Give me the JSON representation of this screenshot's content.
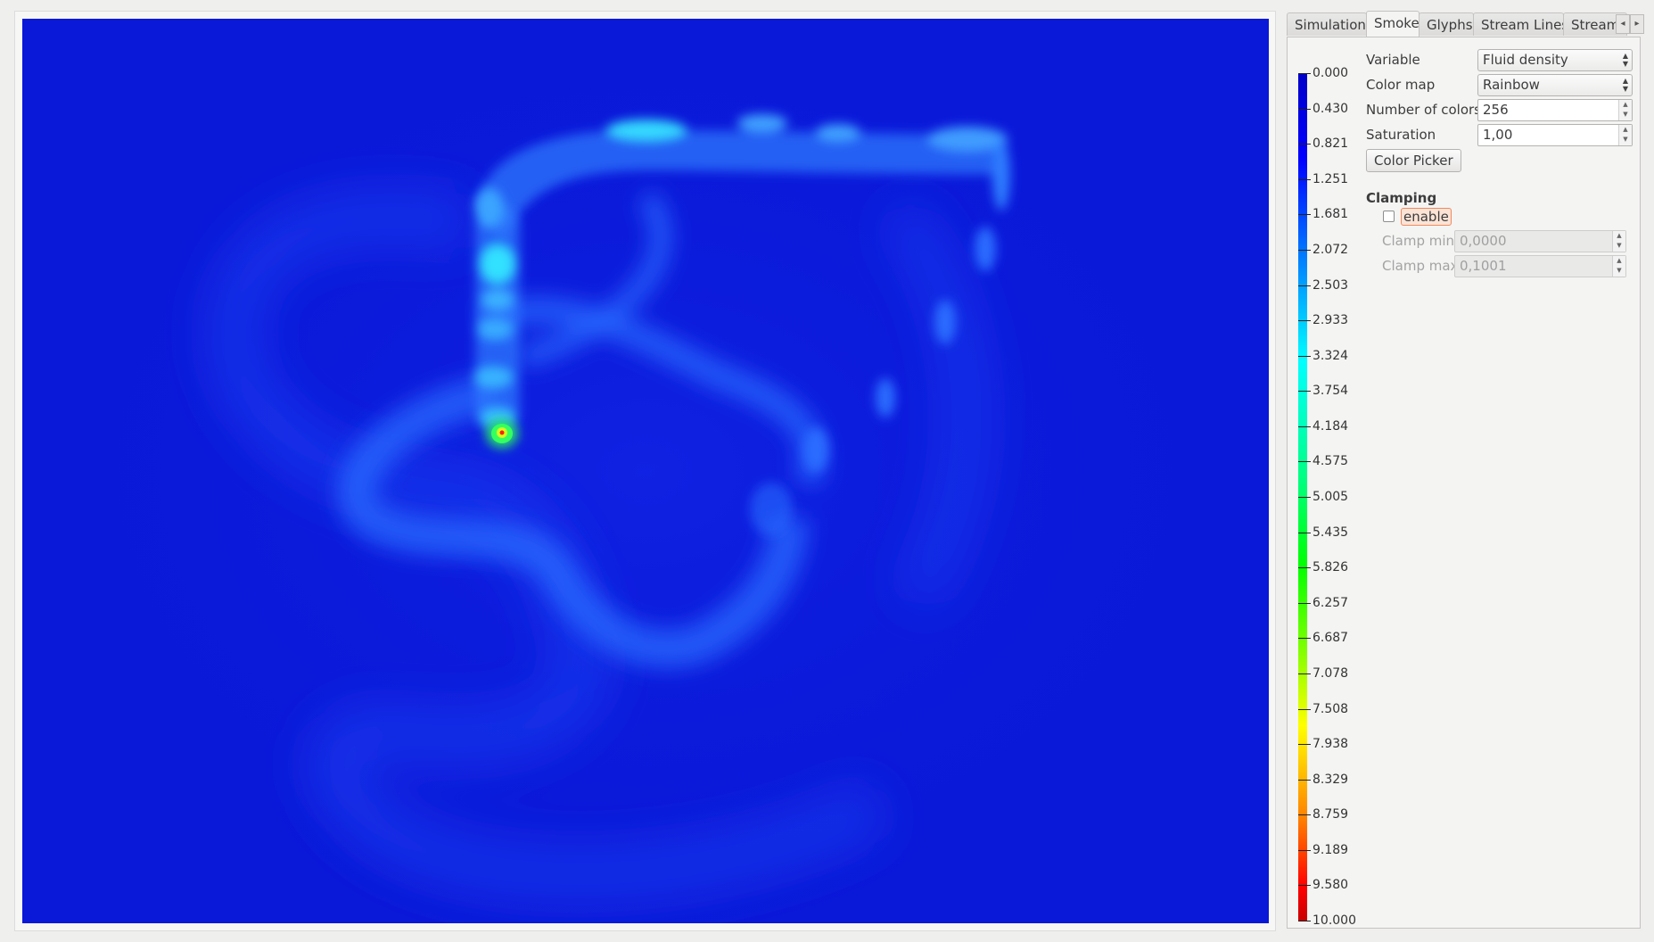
{
  "tabs": [
    {
      "label": "Simulation",
      "active": false
    },
    {
      "label": "Smoke",
      "active": true
    },
    {
      "label": "Glyphs",
      "active": false
    },
    {
      "label": "Stream Lines",
      "active": false
    },
    {
      "label": "Stream",
      "active": false
    }
  ],
  "legend": {
    "ticks": [
      "0.000",
      "0.430",
      "0.821",
      "1.251",
      "1.681",
      "2.072",
      "2.503",
      "2.933",
      "3.324",
      "3.754",
      "4.184",
      "4.575",
      "5.005",
      "5.435",
      "5.826",
      "6.257",
      "6.687",
      "7.078",
      "7.508",
      "7.938",
      "8.329",
      "8.759",
      "9.189",
      "9.580",
      "10.000"
    ],
    "colormap": "rainbow"
  },
  "smoke": {
    "variable_label": "Variable",
    "variable_value": "Fluid density",
    "colormap_label": "Color map",
    "colormap_value": "Rainbow",
    "num_colors_label": "Number of colors",
    "num_colors_value": "256",
    "saturation_label": "Saturation",
    "saturation_value": "1,00",
    "color_picker_label": "Color Picker"
  },
  "clamping": {
    "title": "Clamping",
    "enable_label": "enable",
    "enabled": false,
    "min_label": "Clamp min",
    "min_value": "0,0000",
    "max_label": "Clamp max",
    "max_value": "0,1001"
  },
  "visualization": {
    "background_color": "#0a18d8",
    "plume_color": "#1a5cff",
    "peak_color": "#ff0000"
  }
}
